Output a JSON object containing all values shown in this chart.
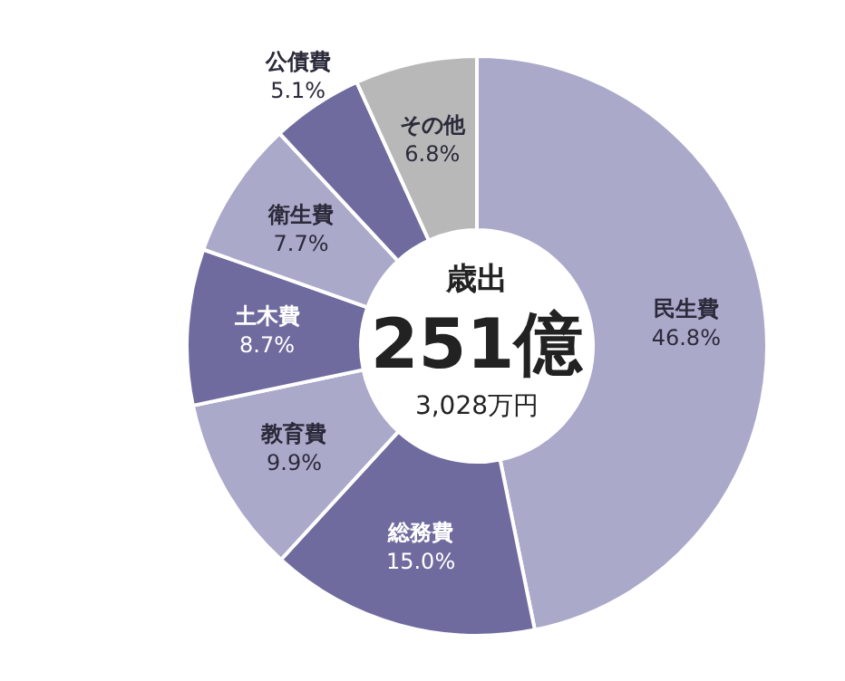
{
  "chart_data": {
    "type": "donut",
    "title": "歳出",
    "annotations": [
      "251億",
      "3,028万円"
    ],
    "categories": [
      "民生費",
      "総務費",
      "教育費",
      "土木費",
      "衛生費",
      "公債費",
      "その他"
    ],
    "values": [
      46.8,
      15.0,
      9.9,
      8.7,
      7.7,
      5.1,
      6.8
    ],
    "value_labels": [
      "46.8%",
      "15.0%",
      "9.9%",
      "8.7%",
      "7.7%",
      "5.1%",
      "6.8%"
    ],
    "colors": [
      "#aba9ca",
      "#6f6b9e",
      "#aba9ca",
      "#6f6b9e",
      "#aba9ca",
      "#6f6b9e",
      "#b8b8b8"
    ],
    "legend": false
  }
}
